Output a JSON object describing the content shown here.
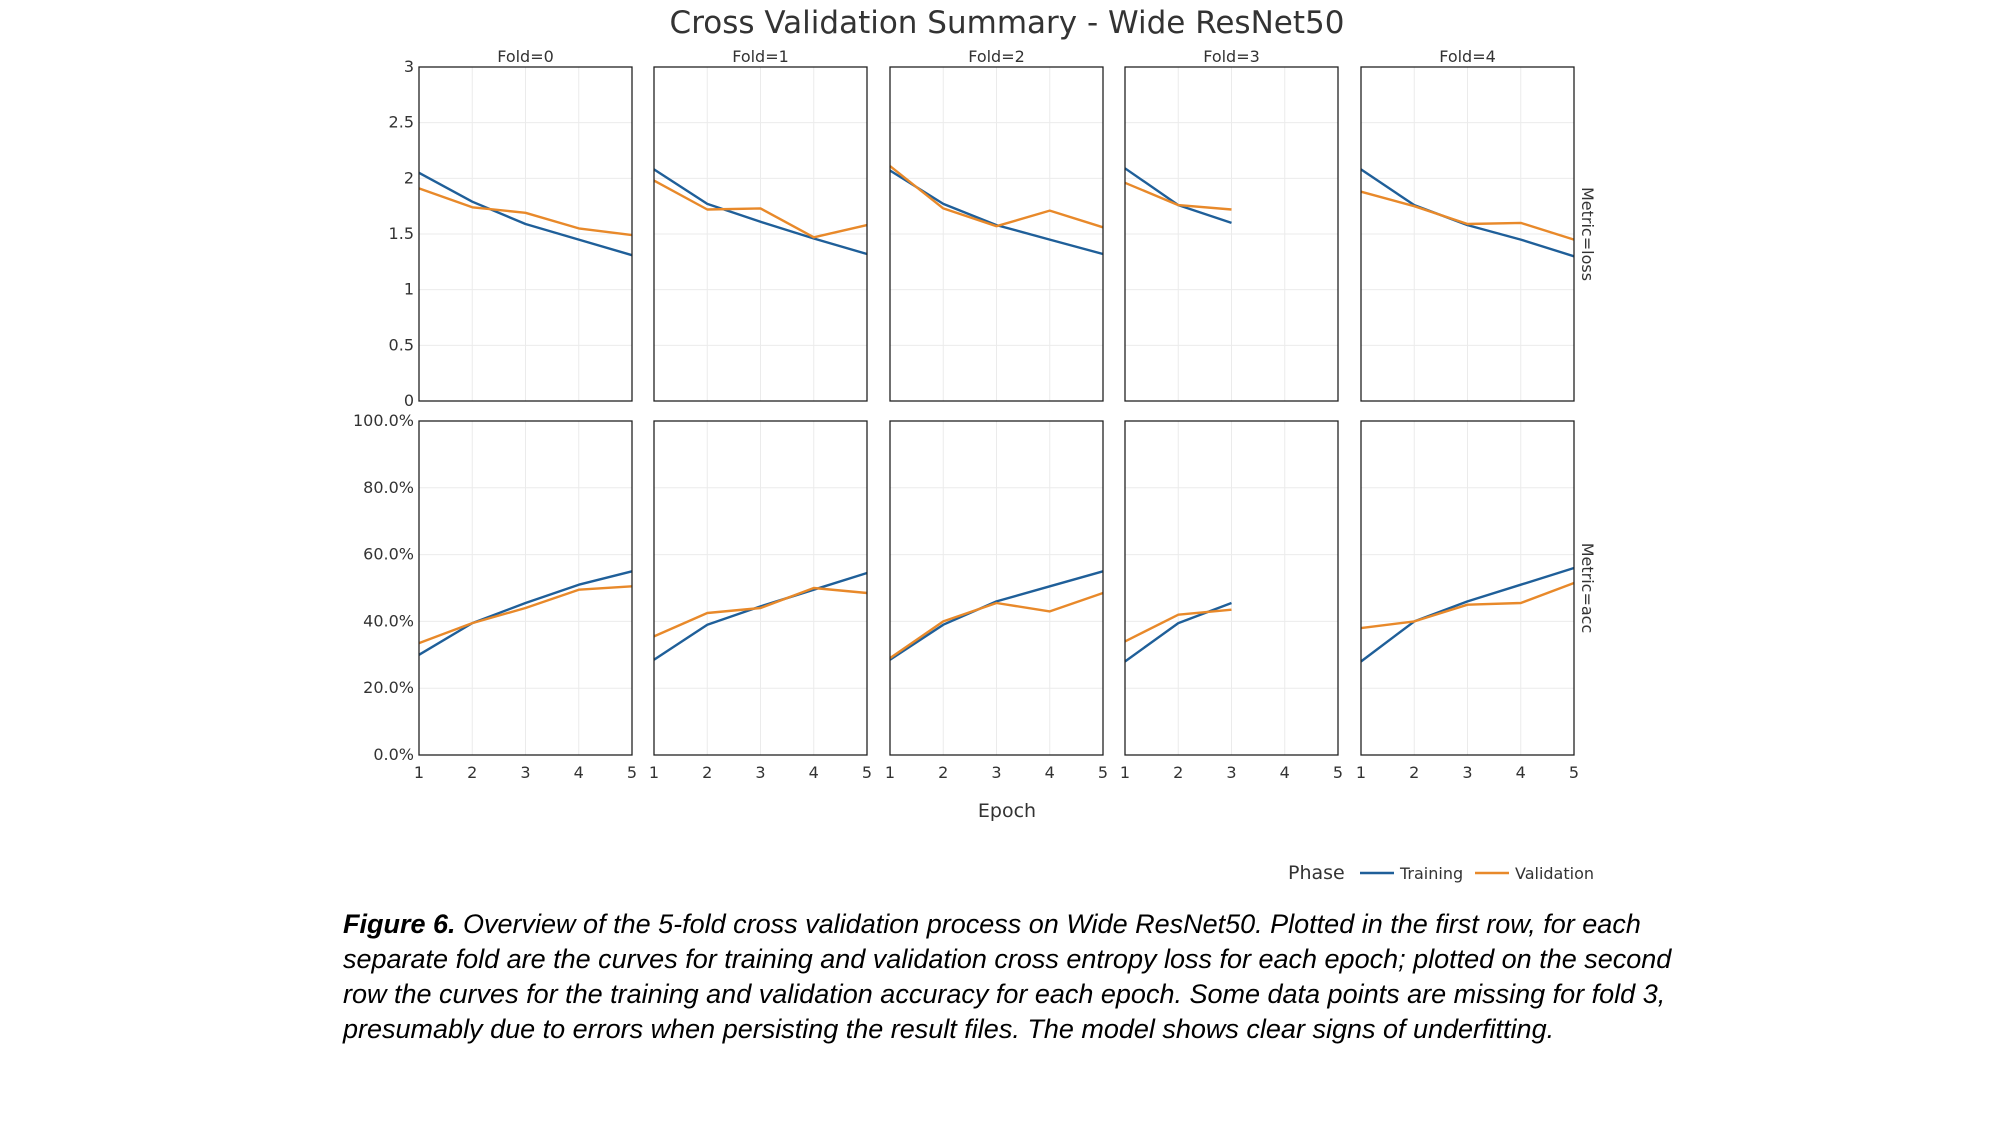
{
  "caption": {
    "label": "Figure 6.",
    "text": " Overview of the 5-fold cross validation process on Wide ResNet50. Plotted in the first row, for each separate fold are the curves for training and validation cross entropy loss for each epoch; plotted on the second row the curves for the training and validation accuracy for each epoch. Some data points are missing for fold 3, presumably due to errors when persisting the result files. The model shows clear signs of underfitting."
  },
  "chart_data": {
    "type": "line",
    "title": "Cross Validation Summary - Wide ResNet50",
    "xlabel": "Epoch",
    "x_ticks": [
      "1",
      "2",
      "3",
      "4",
      "5"
    ],
    "xlim": [
      1,
      5
    ],
    "grid": true,
    "legend": {
      "title": "Phase",
      "placement": "bottom-right",
      "entries": [
        "Training",
        "Validation"
      ]
    },
    "series_colors": {
      "Training": "#1f5f99",
      "Validation": "#e8892a"
    },
    "columns": [
      "Fold=0",
      "Fold=1",
      "Fold=2",
      "Fold=3",
      "Fold=4"
    ],
    "rows": [
      {
        "label": "Metric=loss",
        "ylim": [
          0,
          3
        ],
        "y_ticks": [
          0,
          0.5,
          1,
          1.5,
          2,
          2.5,
          3
        ],
        "y_tick_labels": [
          "0",
          "0.5",
          "1",
          "1.5",
          "2",
          "2.5",
          "3"
        ],
        "panels": [
          {
            "x": [
              1,
              2,
              3,
              4,
              5
            ],
            "series": [
              {
                "name": "Training",
                "values": [
                  2.05,
                  1.79,
                  1.59,
                  1.45,
                  1.31
                ]
              },
              {
                "name": "Validation",
                "values": [
                  1.91,
                  1.74,
                  1.69,
                  1.55,
                  1.49
                ]
              }
            ]
          },
          {
            "x": [
              1,
              2,
              3,
              4,
              5
            ],
            "series": [
              {
                "name": "Training",
                "values": [
                  2.08,
                  1.77,
                  1.61,
                  1.46,
                  1.32
                ]
              },
              {
                "name": "Validation",
                "values": [
                  1.98,
                  1.72,
                  1.73,
                  1.47,
                  1.58
                ]
              }
            ]
          },
          {
            "x": [
              1,
              2,
              3,
              4,
              5
            ],
            "series": [
              {
                "name": "Training",
                "values": [
                  2.07,
                  1.77,
                  1.58,
                  1.45,
                  1.32
                ]
              },
              {
                "name": "Validation",
                "values": [
                  2.11,
                  1.73,
                  1.57,
                  1.71,
                  1.56
                ]
              }
            ]
          },
          {
            "x": [
              1,
              2,
              3
            ],
            "series": [
              {
                "name": "Training",
                "values": [
                  2.09,
                  1.76,
                  1.6
                ]
              },
              {
                "name": "Validation",
                "values": [
                  1.96,
                  1.76,
                  1.72
                ]
              }
            ]
          },
          {
            "x": [
              1,
              2,
              3,
              4,
              5
            ],
            "series": [
              {
                "name": "Training",
                "values": [
                  2.08,
                  1.76,
                  1.58,
                  1.45,
                  1.3
                ]
              },
              {
                "name": "Validation",
                "values": [
                  1.88,
                  1.75,
                  1.59,
                  1.6,
                  1.45
                ]
              }
            ]
          }
        ]
      },
      {
        "label": "Metric=acc",
        "ylim": [
          0,
          1
        ],
        "y_ticks": [
          0,
          0.2,
          0.4,
          0.6,
          0.8,
          1
        ],
        "y_tick_labels": [
          "0.0%",
          "20.0%",
          "40.0%",
          "60.0%",
          "80.0%",
          "100.0%"
        ],
        "panels": [
          {
            "x": [
              1,
              2,
              3,
              4,
              5
            ],
            "series": [
              {
                "name": "Training",
                "values": [
                  0.3,
                  0.395,
                  0.455,
                  0.51,
                  0.55
                ]
              },
              {
                "name": "Validation",
                "values": [
                  0.335,
                  0.395,
                  0.44,
                  0.495,
                  0.505
                ]
              }
            ]
          },
          {
            "x": [
              1,
              2,
              3,
              4,
              5
            ],
            "series": [
              {
                "name": "Training",
                "values": [
                  0.285,
                  0.39,
                  0.445,
                  0.495,
                  0.545
                ]
              },
              {
                "name": "Validation",
                "values": [
                  0.355,
                  0.425,
                  0.44,
                  0.5,
                  0.485
                ]
              }
            ]
          },
          {
            "x": [
              1,
              2,
              3,
              4,
              5
            ],
            "series": [
              {
                "name": "Training",
                "values": [
                  0.285,
                  0.39,
                  0.46,
                  0.505,
                  0.55
                ]
              },
              {
                "name": "Validation",
                "values": [
                  0.29,
                  0.4,
                  0.455,
                  0.43,
                  0.485
                ]
              }
            ]
          },
          {
            "x": [
              1,
              2,
              3
            ],
            "series": [
              {
                "name": "Training",
                "values": [
                  0.28,
                  0.395,
                  0.455
                ]
              },
              {
                "name": "Validation",
                "values": [
                  0.34,
                  0.42,
                  0.435
                ]
              }
            ]
          },
          {
            "x": [
              1,
              2,
              3,
              4,
              5
            ],
            "series": [
              {
                "name": "Training",
                "values": [
                  0.28,
                  0.4,
                  0.46,
                  0.51,
                  0.56
                ]
              },
              {
                "name": "Validation",
                "values": [
                  0.38,
                  0.4,
                  0.45,
                  0.455,
                  0.515
                ]
              }
            ]
          }
        ]
      }
    ]
  }
}
